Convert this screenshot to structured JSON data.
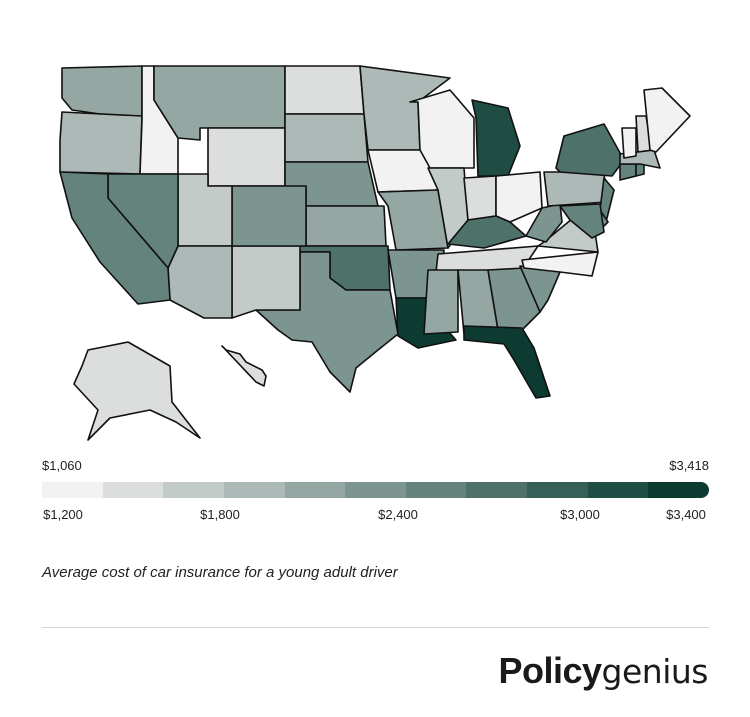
{
  "legend": {
    "min_label": "$1,060",
    "max_label": "$3,418",
    "ticks": [
      "$1,200",
      "$1,800",
      "$2,400",
      "$3,000",
      "$3,400"
    ],
    "bin_colors": [
      "#f2f2f2",
      "#dbdedd",
      "#c3cbc9",
      "#acb9b6",
      "#95a7a3",
      "#7d9590",
      "#65837d",
      "#4e716a",
      "#365f57",
      "#1f4d44",
      "#0d3b32"
    ]
  },
  "caption": "Average cost of car insurance for a young adult driver",
  "brand": {
    "bold": "Policy",
    "light": "genius"
  },
  "chart_data": {
    "type": "choropleth",
    "value_range": [
      1060,
      3418
    ],
    "states": {
      "WA": 1950,
      "OR": 1750,
      "ID": 1150,
      "MT": 2100,
      "WY": 1450,
      "ND": 1350,
      "SD": 1850,
      "NE": 2250,
      "KS": 2000,
      "OK": 2650,
      "TX": 2250,
      "NM": 1500,
      "CO": 2150,
      "UT": 1650,
      "AZ": 1800,
      "NV": 2550,
      "CA": 2400,
      "MN": 1750,
      "IA": 1250,
      "MO": 2000,
      "AR": 2150,
      "LA": 3400,
      "WI": 1150,
      "IL": 1600,
      "MI": 3100,
      "IN": 1450,
      "OH": 1100,
      "KY": 2750,
      "TN": 1400,
      "MS": 1950,
      "AL": 2100,
      "GA": 2250,
      "FL": 3418,
      "SC": 2300,
      "NC": 1060,
      "VA": 1700,
      "WV": 2200,
      "PA": 1900,
      "NY": 2600,
      "NJ": 2500,
      "DE": 2300,
      "MD": 2400,
      "CT": 2450,
      "RI": 2500,
      "MA": 1800,
      "VT": 1200,
      "NH": 1300,
      "ME": 1100,
      "AK": 1450,
      "HI": 1400
    }
  }
}
